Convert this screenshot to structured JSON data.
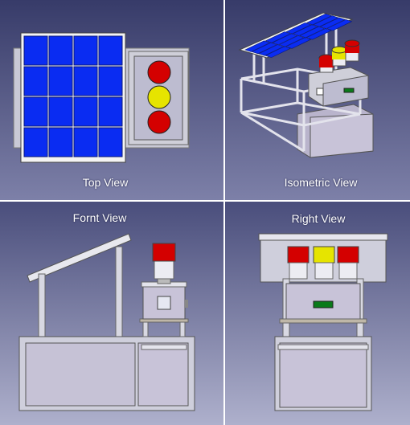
{
  "views": {
    "top": {
      "label": "Top View"
    },
    "isometric": {
      "label": "Isometric View"
    },
    "front": {
      "label": "Fornt View"
    },
    "right": {
      "label": "Right View"
    }
  },
  "colors": {
    "bg_top": "#3b3f6e",
    "bg_bottom": "#a9abc9",
    "divider": "#ffffff",
    "panel_blue": "#0a2cf2",
    "panel_frame": "#f2f2f2",
    "frame_metal": "#c9c9d6",
    "cabinet": "#c8c3d8",
    "light_red": "#d40000",
    "light_yellow": "#e6e400",
    "indicator_green": "#0a7a1a"
  }
}
